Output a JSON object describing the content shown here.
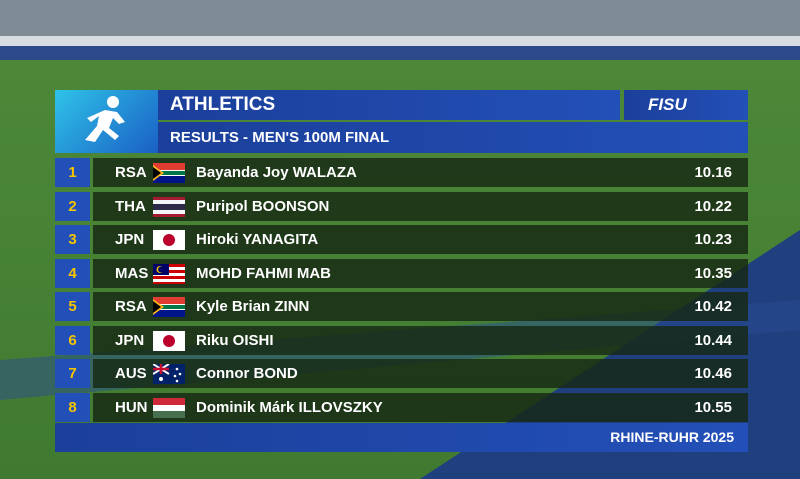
{
  "header": {
    "sport": "ATHLETICS",
    "subtitle": "RESULTS - MEN'S 100M FINAL",
    "logo": "FISU"
  },
  "table": {
    "rows": [
      [
        "1",
        "RSA",
        "Bayanda Joy WALAZA",
        "10.16"
      ],
      [
        "2",
        "THA",
        "Puripol BOONSON",
        "10.22"
      ],
      [
        "3",
        "JPN",
        "Hiroki YANAGITA",
        "10.23"
      ],
      [
        "4",
        "MAS",
        "MOHD FAHMI MAB",
        "10.35"
      ],
      [
        "5",
        "RSA",
        "Kyle Brian ZINN",
        "10.42"
      ],
      [
        "6",
        "JPN",
        "Riku OISHI",
        "10.44"
      ],
      [
        "7",
        "AUS",
        "Connor BOND",
        "10.46"
      ],
      [
        "8",
        "HUN",
        "Dominik Márk ILLOVSZKY",
        "10.55"
      ]
    ]
  },
  "footer": {
    "event": "RHINE-RUHR 2025"
  }
}
